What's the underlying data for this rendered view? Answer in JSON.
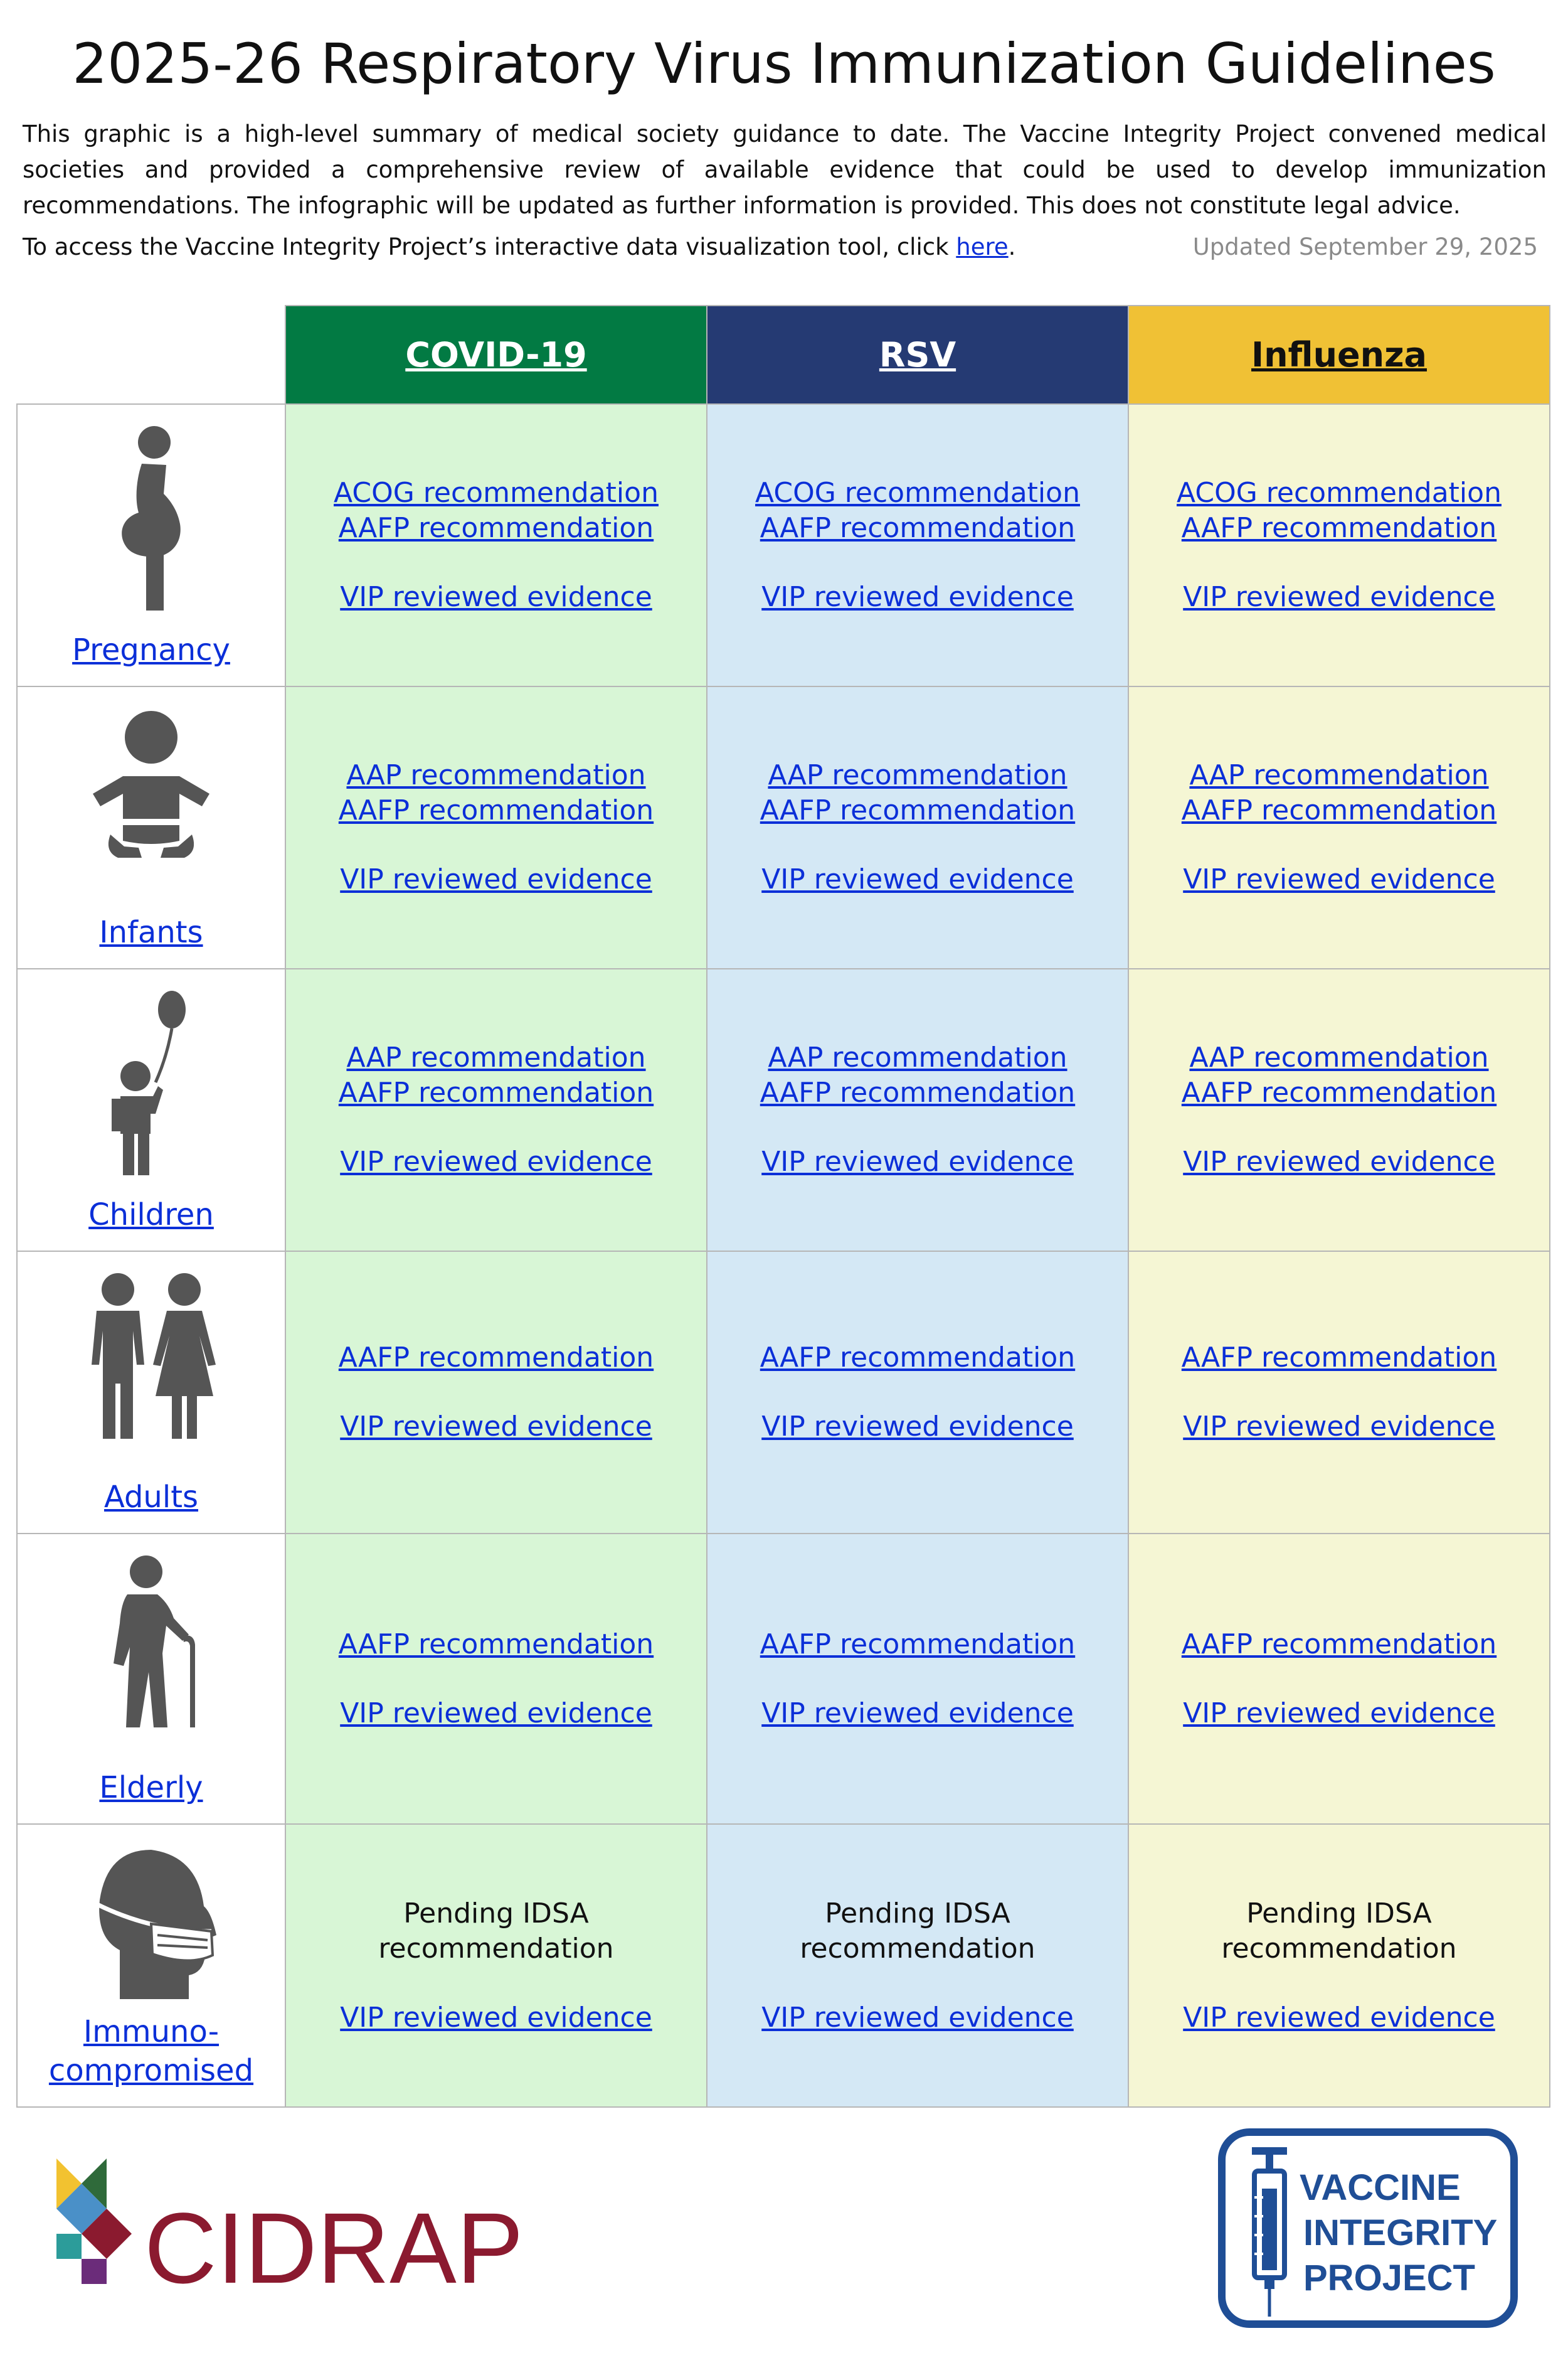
{
  "header": {
    "title": "2025-26 Respiratory Virus Immunization Guidelines",
    "intro": "This graphic is a high-level summary of medical society guidance to date. The Vaccine Integrity Project convened medical societies and provided a comprehensive review of available evidence that could be used to develop immunization recommendations.  The infographic will be updated as further information is provided.  This does not constitute legal advice.",
    "access_prefix": "To access the Vaccine Integrity Project’s interactive data visualization tool, click ",
    "access_link": "here",
    "access_suffix": ".",
    "updated": "Updated September 29, 2025"
  },
  "columns": [
    {
      "label": "COVID-19",
      "color": "#027a43",
      "cell_color": "#d8f6d6"
    },
    {
      "label": "RSV",
      "color": "#253a73",
      "cell_color": "#d4e8f5"
    },
    {
      "label": "Influenza",
      "color": "#f0c135",
      "cell_color": "#f5f6d4"
    }
  ],
  "rows": [
    {
      "label": "Pregnancy",
      "icon": "pregnant-woman-icon",
      "cells": [
        {
          "links": [
            "ACOG recommendation",
            "AAFP recommendation"
          ],
          "evidence": "VIP reviewed evidence"
        },
        {
          "links": [
            "ACOG recommendation",
            "AAFP recommendation"
          ],
          "evidence": "VIP reviewed evidence"
        },
        {
          "links": [
            "ACOG recommendation",
            "AAFP recommendation"
          ],
          "evidence": "VIP reviewed evidence"
        }
      ]
    },
    {
      "label": "Infants",
      "icon": "baby-icon",
      "cells": [
        {
          "links": [
            "AAP recommendation",
            "AAFP recommendation"
          ],
          "evidence": "VIP reviewed evidence"
        },
        {
          "links": [
            "AAP recommendation",
            "AAFP recommendation"
          ],
          "evidence": "VIP reviewed evidence"
        },
        {
          "links": [
            "AAP recommendation",
            "AAFP recommendation"
          ],
          "evidence": "VIP reviewed evidence"
        }
      ]
    },
    {
      "label": "Children",
      "icon": "child-with-balloon-icon",
      "cells": [
        {
          "links": [
            "AAP recommendation",
            "AAFP recommendation"
          ],
          "evidence": "VIP reviewed evidence"
        },
        {
          "links": [
            "AAP recommendation",
            "AAFP recommendation"
          ],
          "evidence": "VIP reviewed evidence"
        },
        {
          "links": [
            "AAP recommendation",
            "AAFP recommendation"
          ],
          "evidence": "VIP reviewed evidence"
        }
      ]
    },
    {
      "label": "Adults",
      "icon": "adult-couple-icon",
      "cells": [
        {
          "links": [
            "AAFP recommendation"
          ],
          "evidence": "VIP reviewed evidence"
        },
        {
          "links": [
            "AAFP recommendation"
          ],
          "evidence": "VIP reviewed evidence"
        },
        {
          "links": [
            "AAFP recommendation"
          ],
          "evidence": "VIP reviewed evidence"
        }
      ]
    },
    {
      "label": "Elderly",
      "icon": "elderly-with-cane-icon",
      "cells": [
        {
          "links": [
            "AAFP recommendation"
          ],
          "evidence": "VIP reviewed evidence"
        },
        {
          "links": [
            "AAFP recommendation"
          ],
          "evidence": "VIP reviewed evidence"
        },
        {
          "links": [
            "AAFP recommendation"
          ],
          "evidence": "VIP reviewed evidence"
        }
      ]
    },
    {
      "label_line1": "Immuno-",
      "label_line2": "compromised",
      "icon": "person-with-mask-icon",
      "cells": [
        {
          "pending": [
            "Pending IDSA",
            "recommendation"
          ],
          "evidence": "VIP reviewed evidence"
        },
        {
          "pending": [
            "Pending IDSA",
            "recommendation"
          ],
          "evidence": "VIP reviewed evidence"
        },
        {
          "pending": [
            "Pending IDSA",
            "recommendation"
          ],
          "evidence": "VIP reviewed evidence"
        }
      ]
    }
  ],
  "logos": {
    "cidrap": "CIDRAP",
    "vip_line1": "VACCINE",
    "vip_line2": "INTEGRITY",
    "vip_line3": "PROJECT"
  },
  "colors": {
    "link": "#0b2fd8",
    "icon": "#555555",
    "cidrap_red": "#8b1a2f",
    "vip_blue": "#1f4e96"
  }
}
